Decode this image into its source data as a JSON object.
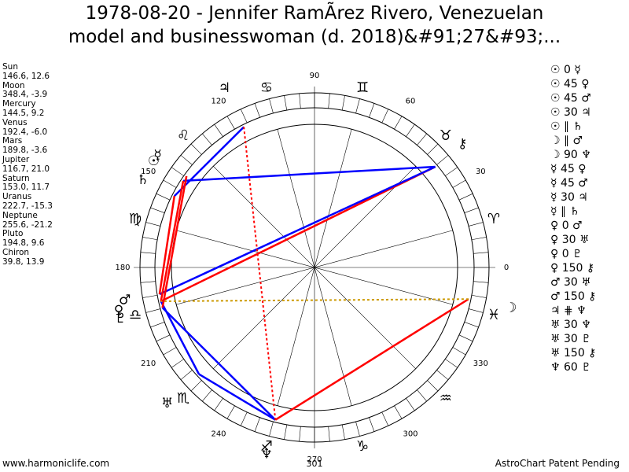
{
  "header": {
    "title_lines": [
      "1978-08-20 - Jennifer RamÃrez Rivero, Venezuelan",
      "model and businesswoman (d. 2018)&#91;27&#93;..."
    ]
  },
  "planets": [
    {
      "name": "Sun",
      "coords": "146.6, 12.6",
      "glyph": "☉"
    },
    {
      "name": "Moon",
      "coords": "348.4, -3.9",
      "glyph": "☽"
    },
    {
      "name": "Mercury",
      "coords": "144.5, 9.2",
      "glyph": "☿"
    },
    {
      "name": "Venus",
      "coords": "192.4, -6.0",
      "glyph": "♀"
    },
    {
      "name": "Mars",
      "coords": "189.8, -3.6",
      "glyph": "♂"
    },
    {
      "name": "Jupiter",
      "coords": "116.7, 21.0",
      "glyph": "♃"
    },
    {
      "name": "Saturn",
      "coords": "153.0, 11.7",
      "glyph": "♄"
    },
    {
      "name": "Uranus",
      "coords": "222.7, -15.3",
      "glyph": "♅"
    },
    {
      "name": "Neptune",
      "coords": "255.6, -21.2",
      "glyph": "♆"
    },
    {
      "name": "Pluto",
      "coords": "194.8, 9.6",
      "glyph": "♇"
    },
    {
      "name": "Chiron",
      "coords": "39.8, 13.9",
      "glyph": "⚷"
    }
  ],
  "signs": [
    "♈",
    "♉",
    "♊",
    "♋",
    "♌",
    "♍",
    "♎",
    "♏",
    "♐",
    "♑",
    "♒",
    "♓"
  ],
  "degrees": [
    0,
    30,
    60,
    90,
    120,
    150,
    180,
    210,
    240,
    270,
    300,
    330
  ],
  "bottom_label": "301",
  "aspects": [
    "☉ 0 ☿",
    "☉ 45 ♀",
    "☉ 45 ♂",
    "☉ 30 ♃",
    "☉ ∥ ♄",
    "☽ ∥ ♂",
    "☽ 90 ♆",
    "☿ 45 ♀",
    "☿ 45 ♂",
    "☿ 30 ♃",
    "☿ ∥ ♄",
    "♀ 0 ♂",
    "♀ 30 ♅",
    "♀ 0 ♇",
    "♀ 150 ⚷",
    "♂ 30 ♅",
    "♂ 150 ⚷",
    "♃ ⋕ ♆",
    "♅ 30 ♆",
    "♅ 30 ♇",
    "♅ 150 ⚷",
    "♆ 60 ♇"
  ],
  "footer": {
    "left": "www.harmoniclife.com",
    "right": "AstroChart Patent Pending"
  }
}
